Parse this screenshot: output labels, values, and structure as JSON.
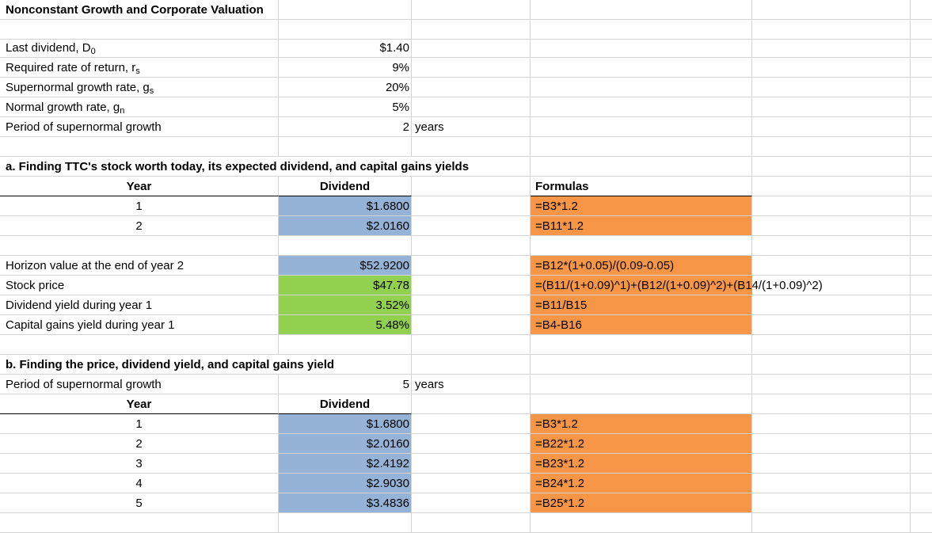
{
  "title": "Nonconstant Growth and Corporate Valuation",
  "inputs": [
    {
      "label": "Last dividend, D",
      "sub": "0",
      "value": "$1.40",
      "unit": ""
    },
    {
      "label": "Required rate of return, r",
      "sub": "s",
      "value": "9%",
      "unit": ""
    },
    {
      "label": "Supernormal growth rate, g",
      "sub": "s",
      "value": "20%",
      "unit": ""
    },
    {
      "label": "Normal growth rate, g",
      "sub": "n",
      "value": "5%",
      "unit": ""
    },
    {
      "label": "Period of supernormal growth",
      "sub": "",
      "value": "2",
      "unit": "years"
    }
  ],
  "section_a": {
    "heading": "a. Finding TTC's stock worth today, its expected dividend, and capital gains yields",
    "col_year": "Year",
    "col_dividend": "Dividend",
    "col_formulas": "Formulas",
    "rows": [
      {
        "year": "1",
        "dividend": "$1.6800",
        "formula": "=B3*1.2"
      },
      {
        "year": "2",
        "dividend": "$2.0160",
        "formula": "=B11*1.2"
      }
    ],
    "results": [
      {
        "label": "Horizon value at the end of year 2",
        "value": "$52.9200",
        "formula": "=B12*(1+0.05)/(0.09-0.05)"
      },
      {
        "label": "Stock price",
        "value": "$47.78",
        "formula": "=(B11/(1+0.09)^1)+(B12/(1+0.09)^2)+(B14/(1+0.09)^2)"
      },
      {
        "label": "Dividend yield during year 1",
        "value": "3.52%",
        "formula": "=B11/B15"
      },
      {
        "label": "Capital gains yield during year 1",
        "value": "5.48%",
        "formula": "=B4-B16"
      }
    ]
  },
  "section_b": {
    "heading": "b. Finding the price, dividend yield, and capital gains yield",
    "period_label": "Period of supernormal growth",
    "period_value": "5",
    "period_unit": "years",
    "col_year": "Year",
    "col_dividend": "Dividend",
    "rows": [
      {
        "year": "1",
        "dividend": "$1.6800",
        "formula": "=B3*1.2"
      },
      {
        "year": "2",
        "dividend": "$2.0160",
        "formula": "=B22*1.2"
      },
      {
        "year": "3",
        "dividend": "$2.4192",
        "formula": "=B23*1.2"
      },
      {
        "year": "4",
        "dividend": "$2.9030",
        "formula": "=B24*1.2"
      },
      {
        "year": "5",
        "dividend": "$3.4836",
        "formula": "=B25*1.2"
      }
    ]
  },
  "colors": {
    "blue": "#95b3d7",
    "green": "#92d050",
    "orange": "#f79646"
  }
}
